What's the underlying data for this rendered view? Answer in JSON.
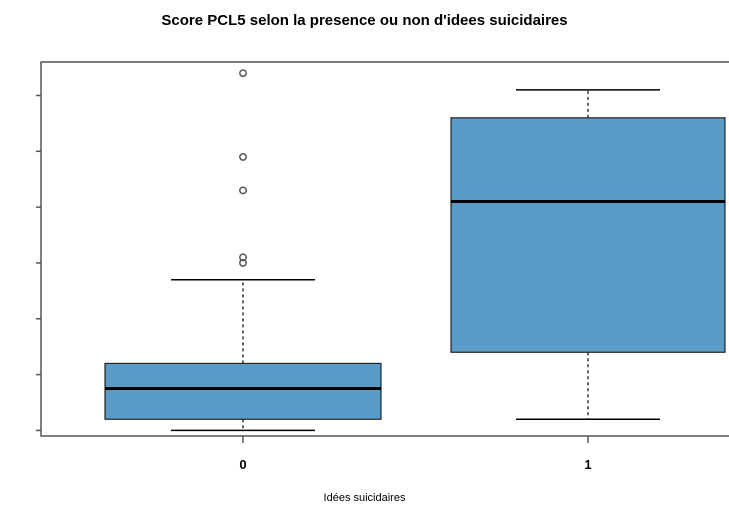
{
  "chart_data": {
    "type": "boxplot",
    "title": "Score PCL5 selon la presence ou non d'idees suicidaires",
    "xlabel": "Idées suicidaires",
    "ylabel": "",
    "categories": [
      "0",
      "1"
    ],
    "ylim": [
      -1,
      66
    ],
    "y_tick_labels_visible": false,
    "box_color": "#5b9bc9",
    "boxes": [
      {
        "category": "0",
        "whisker_low": 0,
        "q1": 2,
        "median": 7.5,
        "q3": 12,
        "whisker_high": 27,
        "outliers": [
          30,
          31,
          43,
          49,
          64
        ]
      },
      {
        "category": "1",
        "whisker_low": 2,
        "q1": 14,
        "median": 41,
        "q3": 56,
        "whisker_high": 61,
        "outliers": []
      }
    ]
  }
}
